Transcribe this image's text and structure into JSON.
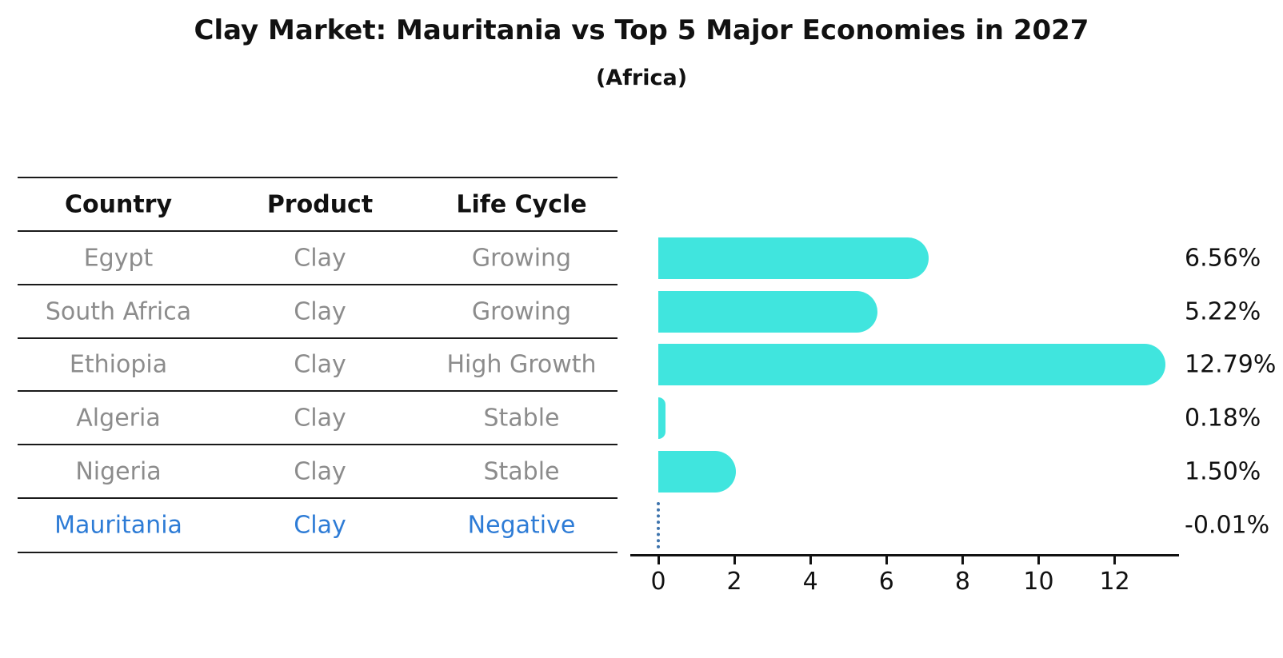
{
  "title": "Clay Market: Mauritania vs Top 5 Major Economies in 2027",
  "subtitle": "(Africa)",
  "table": {
    "headers": [
      "Country",
      "Product",
      "Life Cycle"
    ],
    "rows": [
      {
        "country": "Egypt",
        "product": "Clay",
        "life_cycle": "Growing",
        "highlight": false
      },
      {
        "country": "South Africa",
        "product": "Clay",
        "life_cycle": "Growing",
        "highlight": false
      },
      {
        "country": "Ethiopia",
        "product": "Clay",
        "life_cycle": "High Growth",
        "highlight": false
      },
      {
        "country": "Algeria",
        "product": "Clay",
        "life_cycle": "Stable",
        "highlight": false
      },
      {
        "country": "Nigeria",
        "product": "Clay",
        "life_cycle": "Stable",
        "highlight": false
      },
      {
        "country": "Mauritania",
        "product": "Clay",
        "life_cycle": "Negative",
        "highlight": true
      }
    ]
  },
  "chart_data": {
    "type": "bar",
    "orientation": "horizontal",
    "title": "Clay Market: Mauritania vs Top 5 Major Economies in 2027",
    "subtitle": "(Africa)",
    "categories": [
      "Egypt",
      "South Africa",
      "Ethiopia",
      "Algeria",
      "Nigeria",
      "Mauritania"
    ],
    "values": [
      6.56,
      5.22,
      12.79,
      0.18,
      1.5,
      -0.01
    ],
    "value_labels": [
      "6.56%",
      "5.22%",
      "12.79%",
      "0.18%",
      "1.50%",
      "-0.01%"
    ],
    "xlabel": "",
    "ylabel": "",
    "x_ticks": [
      "0",
      "2",
      "4",
      "6",
      "8",
      "10",
      "12"
    ],
    "xlim": [
      -0.75,
      13.65
    ],
    "grid": false,
    "legend": false,
    "highlight_category": "Mauritania",
    "highlight_style": "dotted-vertical-line-at-zero"
  },
  "colors": {
    "bar": "#40e5de",
    "highlight_text": "#2e7cd6",
    "highlight_line": "#3e74ad",
    "table_text": "#8c8c8c",
    "header_text": "#111111",
    "axis": "#111111"
  }
}
